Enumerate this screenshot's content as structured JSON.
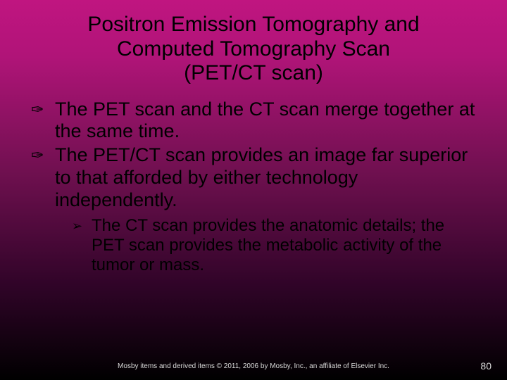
{
  "slide": {
    "background_gradient_stops": [
      "#c01580",
      "#b01478",
      "#701050",
      "#300428",
      "#000000"
    ],
    "title_line1": "Positron Emission Tomography and",
    "title_line2": "Computed Tomography Scan",
    "title_line3": "(PET/CT scan)",
    "title_fontsize": 30,
    "title_color": "#000000",
    "bullets": [
      {
        "icon": "✑",
        "text": "The PET scan and the CT scan merge together at the same time."
      },
      {
        "icon": "✑",
        "text": "The PET/CT scan provides an image far superior to that afforded by either technology independently."
      }
    ],
    "bullet_fontsize": 27,
    "bullet_color": "#000000",
    "sub_bullet": {
      "icon": "➢",
      "text": "The CT scan provides the anatomic details; the PET scan provides the metabolic activity of the tumor or mass."
    },
    "sub_bullet_fontsize": 24,
    "footer_text": "Mosby items and derived items © 2011, 2006 by Mosby, Inc., an affiliate of Elsevier Inc.",
    "footer_fontsize": 10,
    "footer_color": "#d8d8d8",
    "page_number": "80",
    "page_number_fontsize": 14
  }
}
